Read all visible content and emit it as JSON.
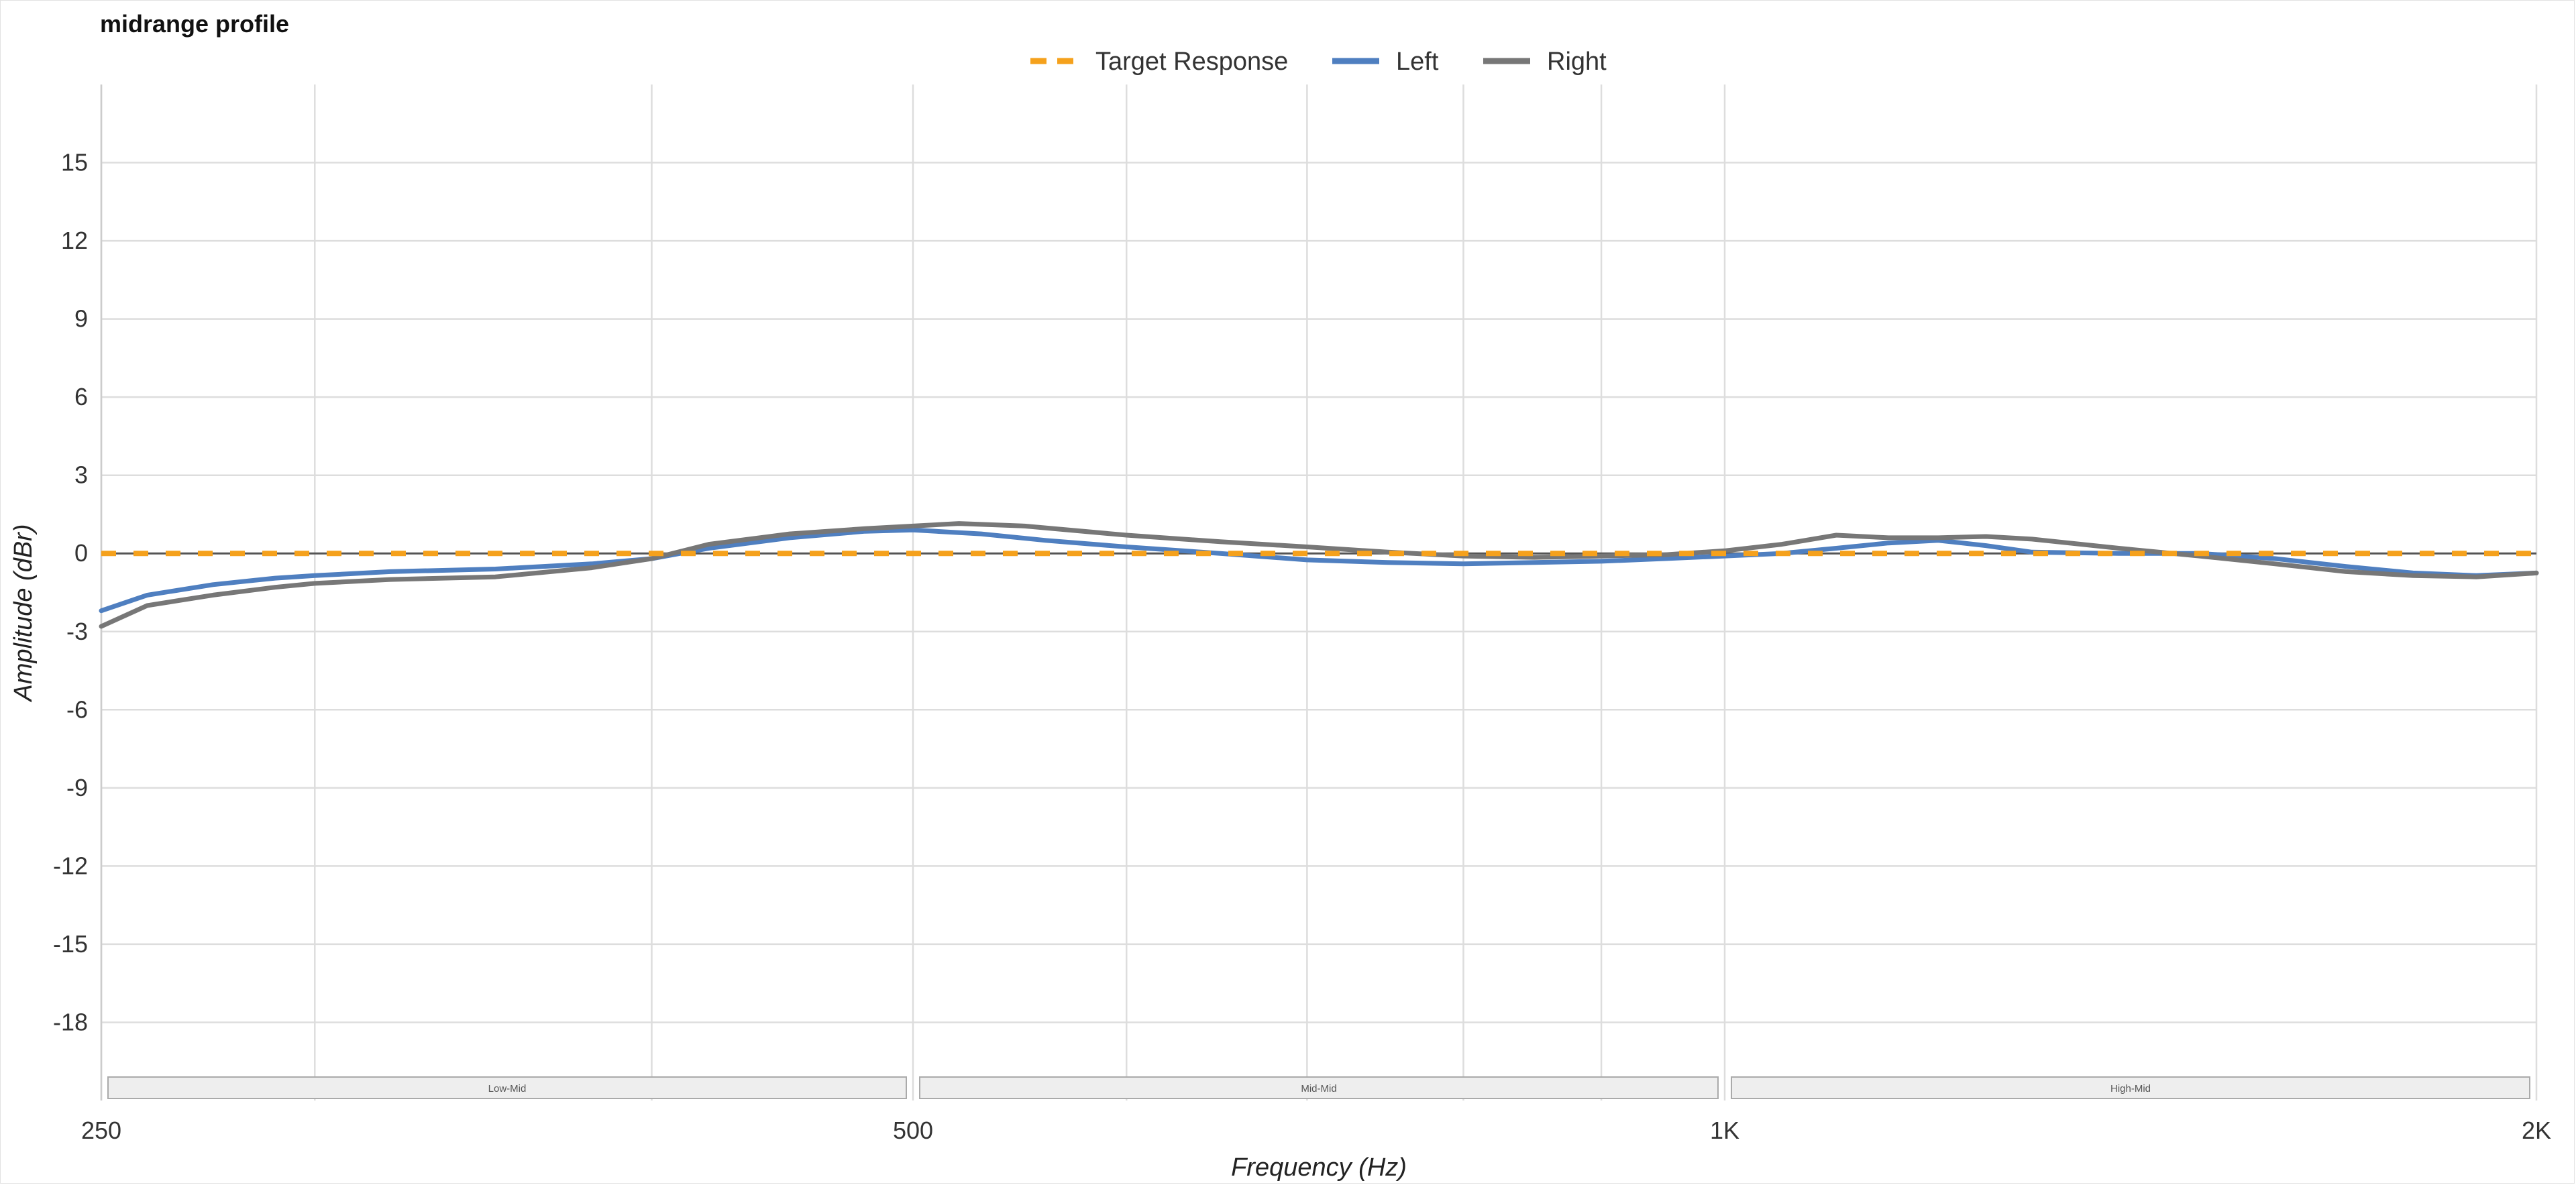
{
  "chart_data": {
    "type": "line",
    "title": "midrange profile",
    "xlabel": "Frequency (Hz)",
    "ylabel": "Amplitude (dBr)",
    "x_scale": "log",
    "xlim": [
      250,
      2000
    ],
    "ylim": [
      -21,
      18
    ],
    "y_ticks": [
      15,
      12,
      9,
      6,
      3,
      0,
      -3,
      -6,
      -9,
      -12,
      -15,
      -18
    ],
    "x_tick_labels": [
      {
        "value": 250,
        "label": "250"
      },
      {
        "value": 500,
        "label": "500"
      },
      {
        "value": 1000,
        "label": "1K"
      },
      {
        "value": 2000,
        "label": "2K"
      }
    ],
    "x_gridlines": [
      250,
      300,
      400,
      500,
      600,
      700,
      800,
      900,
      1000,
      2000
    ],
    "grid": true,
    "legend_position": "top-center",
    "bands": [
      {
        "label": "Low-Mid",
        "from": 250,
        "to": 500
      },
      {
        "label": "Mid-Mid",
        "from": 500,
        "to": 1000
      },
      {
        "label": "High-Mid",
        "from": 1000,
        "to": 2000
      }
    ],
    "series": [
      {
        "name": "Target Response",
        "color": "#f5a11c",
        "style": "dashed",
        "x": [
          250,
          2000
        ],
        "y": [
          0,
          0
        ]
      },
      {
        "name": "Left",
        "color": "#4f7fc0",
        "style": "solid",
        "x": [
          250,
          260,
          275,
          290,
          300,
          320,
          350,
          380,
          400,
          420,
          450,
          480,
          500,
          530,
          560,
          600,
          650,
          700,
          750,
          800,
          850,
          900,
          950,
          1000,
          1050,
          1100,
          1150,
          1200,
          1250,
          1300,
          1400,
          1500,
          1600,
          1700,
          1800,
          1900,
          2000
        ],
        "y": [
          -2.2,
          -1.6,
          -1.2,
          -0.95,
          -0.85,
          -0.7,
          -0.6,
          -0.4,
          -0.2,
          0.2,
          0.6,
          0.85,
          0.9,
          0.75,
          0.5,
          0.25,
          0.0,
          -0.25,
          -0.35,
          -0.4,
          -0.35,
          -0.3,
          -0.2,
          -0.1,
          0.0,
          0.2,
          0.4,
          0.5,
          0.3,
          0.05,
          0.0,
          0.0,
          -0.2,
          -0.5,
          -0.75,
          -0.85,
          -0.75
        ]
      },
      {
        "name": "Right",
        "color": "#777777",
        "style": "solid",
        "x": [
          250,
          260,
          275,
          290,
          300,
          320,
          350,
          380,
          400,
          420,
          450,
          480,
          500,
          520,
          550,
          600,
          650,
          700,
          750,
          800,
          850,
          900,
          950,
          1000,
          1050,
          1100,
          1150,
          1200,
          1250,
          1300,
          1400,
          1500,
          1600,
          1700,
          1800,
          1900,
          2000
        ],
        "y": [
          -2.8,
          -2.0,
          -1.6,
          -1.3,
          -1.15,
          -1.0,
          -0.9,
          -0.55,
          -0.2,
          0.35,
          0.75,
          0.95,
          1.05,
          1.15,
          1.05,
          0.7,
          0.45,
          0.25,
          0.05,
          -0.1,
          -0.15,
          -0.1,
          -0.05,
          0.1,
          0.35,
          0.7,
          0.6,
          0.6,
          0.65,
          0.55,
          0.2,
          -0.1,
          -0.4,
          -0.7,
          -0.85,
          -0.9,
          -0.75
        ]
      }
    ]
  }
}
